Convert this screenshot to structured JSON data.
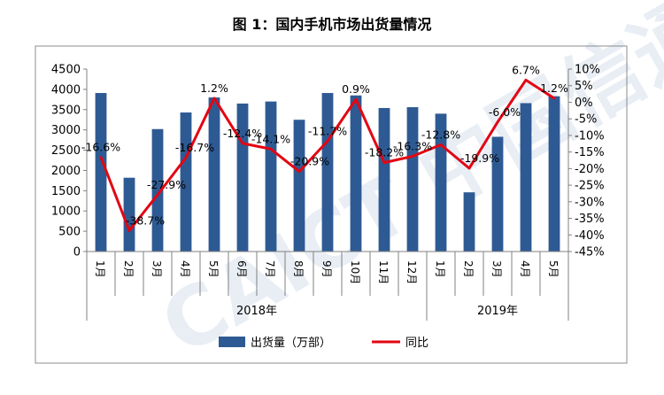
{
  "chart_data": {
    "type": "bar",
    "title": "图 1：国内手机市场出货量情况",
    "years": [
      {
        "label": "2018年",
        "months": 12
      },
      {
        "label": "2019年",
        "months": 5
      }
    ],
    "categories": [
      "1月",
      "2月",
      "3月",
      "4月",
      "5月",
      "6月",
      "7月",
      "8月",
      "9月",
      "10月",
      "11月",
      "12月",
      "1月",
      "2月",
      "3月",
      "4月",
      "5月"
    ],
    "series": [
      {
        "name": "出货量（万部）",
        "type": "bar",
        "axis": "left",
        "color": "#2E5A93",
        "values": [
          3910,
          1820,
          3020,
          3430,
          3800,
          3650,
          3700,
          3250,
          3910,
          3850,
          3540,
          3560,
          3400,
          1460,
          2830,
          3660,
          3830
        ]
      },
      {
        "name": "同比",
        "type": "line",
        "axis": "right",
        "color": "#E30613",
        "values": [
          -16.6,
          -38.7,
          -27.9,
          -16.7,
          1.2,
          -12.4,
          -14.1,
          -20.9,
          -11.7,
          0.9,
          -18.2,
          -16.3,
          -12.8,
          -19.9,
          -6.0,
          6.7,
          1.2
        ],
        "labels": [
          "-16.6%",
          "-38.7%",
          "-27.9%",
          "-16.7%",
          "1.2%",
          "-12.4%",
          "-14.1%",
          "-20.9%",
          "-11.7%",
          "0.9%",
          "-18.2%",
          "-16.3%",
          "-12.8%",
          "-19.9%",
          "-6.0%",
          "6.7%",
          "1.2%"
        ]
      }
    ],
    "left_axis": {
      "min": 0,
      "max": 4500,
      "step": 500,
      "ticks": [
        "0",
        "500",
        "1000",
        "1500",
        "2000",
        "2500",
        "3000",
        "3500",
        "4000",
        "4500"
      ]
    },
    "right_axis": {
      "min": -45,
      "max": 10,
      "step": 5,
      "ticks": [
        "10%",
        "5%",
        "0%",
        "-5%",
        "-10%",
        "-15%",
        "-20%",
        "-25%",
        "-30%",
        "-35%",
        "-40%",
        "-45%"
      ]
    },
    "grid": false,
    "legend": "bottom"
  },
  "watermark": "CAICT 中国信通院"
}
